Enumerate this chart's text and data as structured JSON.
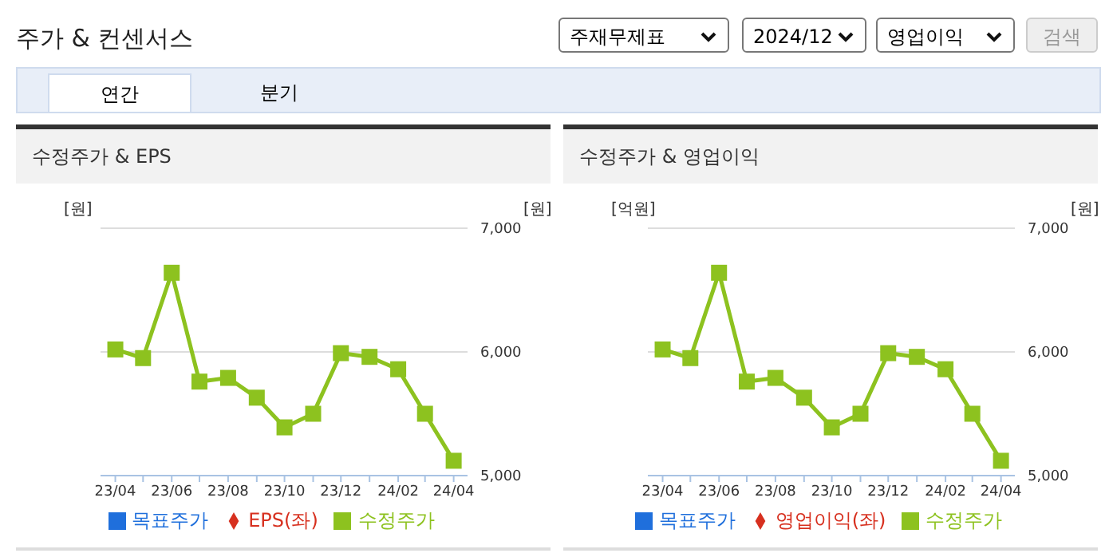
{
  "chart_data": [
    {
      "type": "other",
      "title": "주가 & 컨센서스",
      "annotations": [
        "주재무제표",
        "2024/12",
        "영업이익",
        "검색",
        "연간",
        "분기"
      ]
    },
    {
      "type": "line",
      "title": "수정주가 & EPS",
      "ylabel": "[원]",
      "y2label": "[원]",
      "x": [
        "2023-04",
        "2023-05",
        "2023-06",
        "2023-07",
        "2023-08",
        "2023-09",
        "2023-10",
        "2023-11",
        "2023-12",
        "2024-01",
        "2024-02",
        "2024-03",
        "2024-04"
      ],
      "xlim": [
        "2023-03-16",
        "2024-04-16"
      ],
      "xticks": [
        {
          "value": "2023-04",
          "label": "23/04"
        },
        {
          "value": "2023-05",
          "label": null
        },
        {
          "value": "2023-06",
          "label": "23/06"
        },
        {
          "value": "2023-07",
          "label": null
        },
        {
          "value": "2023-08",
          "label": "23/08"
        },
        {
          "value": "2023-09",
          "label": null
        },
        {
          "value": "2023-10",
          "label": "23/10"
        },
        {
          "value": "2023-11",
          "label": null
        },
        {
          "value": "2023-12",
          "label": "23/12"
        },
        {
          "value": "2024-01",
          "label": null
        },
        {
          "value": "2024-02",
          "label": "24/02"
        },
        {
          "value": "2024-03",
          "label": null
        },
        {
          "value": "2024-04",
          "label": "24/04"
        }
      ],
      "y2lim": [
        5000,
        7000
      ],
      "y2ticks": [
        {
          "value": 5000,
          "label": "5,000"
        },
        {
          "value": 6000,
          "label": "6,000"
        },
        {
          "value": 7000,
          "label": "7,000"
        }
      ],
      "grid": "y",
      "legend": "bottom",
      "series": [
        {
          "name": "목표주가",
          "color": "#1f6fdc",
          "marker": "square",
          "values": [
            null,
            null,
            null,
            null,
            null,
            null,
            null,
            null,
            null,
            null,
            null,
            null,
            null
          ]
        },
        {
          "name": "EPS(좌)",
          "color": "#d7301f",
          "marker": "diamond",
          "values": [
            null,
            null,
            null,
            null,
            null,
            null,
            null,
            null,
            null,
            null,
            null,
            null,
            null
          ]
        },
        {
          "name": "수정주가",
          "color": "#8dc21f",
          "marker": "square",
          "axis": "y2",
          "values": [
            6020,
            5950,
            6640,
            5760,
            5790,
            5630,
            5390,
            5500,
            5990,
            5960,
            5860,
            5500,
            5120
          ]
        }
      ]
    },
    {
      "type": "line",
      "title": "수정주가 & 영업이익",
      "ylabel": "[억원]",
      "y2label": "[원]",
      "x": [
        "2023-04",
        "2023-05",
        "2023-06",
        "2023-07",
        "2023-08",
        "2023-09",
        "2023-10",
        "2023-11",
        "2023-12",
        "2024-01",
        "2024-02",
        "2024-03",
        "2024-04"
      ],
      "xlim": [
        "2023-03-16",
        "2024-04-16"
      ],
      "xticks": [
        {
          "value": "2023-04",
          "label": "23/04"
        },
        {
          "value": "2023-05",
          "label": null
        },
        {
          "value": "2023-06",
          "label": "23/06"
        },
        {
          "value": "2023-07",
          "label": null
        },
        {
          "value": "2023-08",
          "label": "23/08"
        },
        {
          "value": "2023-09",
          "label": null
        },
        {
          "value": "2023-10",
          "label": "23/10"
        },
        {
          "value": "2023-11",
          "label": null
        },
        {
          "value": "2023-12",
          "label": "23/12"
        },
        {
          "value": "2024-01",
          "label": null
        },
        {
          "value": "2024-02",
          "label": "24/02"
        },
        {
          "value": "2024-03",
          "label": null
        },
        {
          "value": "2024-04",
          "label": "24/04"
        }
      ],
      "y2lim": [
        5000,
        7000
      ],
      "y2ticks": [
        {
          "value": 5000,
          "label": "5,000"
        },
        {
          "value": 6000,
          "label": "6,000"
        },
        {
          "value": 7000,
          "label": "7,000"
        }
      ],
      "grid": "y",
      "legend": "bottom",
      "series": [
        {
          "name": "목표주가",
          "color": "#1f6fdc",
          "marker": "square",
          "values": [
            null,
            null,
            null,
            null,
            null,
            null,
            null,
            null,
            null,
            null,
            null,
            null,
            null
          ]
        },
        {
          "name": "영업이익(좌)",
          "color": "#d7301f",
          "marker": "diamond",
          "values": [
            null,
            null,
            null,
            null,
            null,
            null,
            null,
            null,
            null,
            null,
            null,
            null,
            null
          ]
        },
        {
          "name": "수정주가",
          "color": "#8dc21f",
          "marker": "square",
          "axis": "y2",
          "values": [
            6020,
            5950,
            6640,
            5760,
            5790,
            5630,
            5390,
            5500,
            5990,
            5960,
            5860,
            5500,
            5120
          ]
        }
      ]
    }
  ]
}
